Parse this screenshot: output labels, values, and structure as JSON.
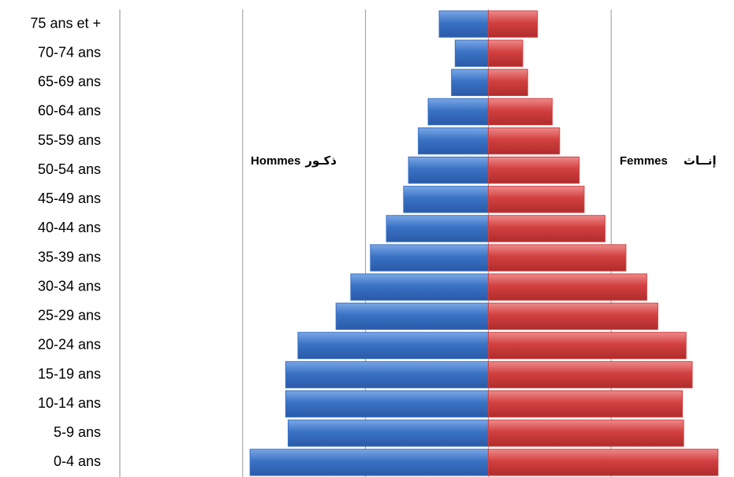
{
  "chart_data": {
    "type": "pyramid",
    "categories": [
      "0-4 ans",
      "5-9 ans",
      "10-14 ans",
      "15-19 ans",
      "20-24 ans",
      "25-29 ans",
      "30-34 ans",
      "35-39 ans",
      "40-44 ans",
      "45-49 ans",
      "50-54 ans",
      "55-59 ans",
      "60-64 ans",
      "65-69 ans",
      "70-74 ans",
      "75 ans et +"
    ],
    "series": [
      {
        "name": "Hommes",
        "name_ar": "ذكـور",
        "color": "#3a72c4",
        "side": "left",
        "values": [
          1.94,
          1.63,
          1.65,
          1.65,
          1.55,
          1.24,
          1.12,
          0.96,
          0.83,
          0.69,
          0.65,
          0.57,
          0.49,
          0.3,
          0.27,
          0.4
        ]
      },
      {
        "name": "Femmes",
        "name_ar": "إنــاث",
        "color": "#d24040",
        "side": "right",
        "values": [
          1.87,
          1.59,
          1.58,
          1.66,
          1.61,
          1.38,
          1.29,
          1.12,
          0.95,
          0.78,
          0.74,
          0.58,
          0.52,
          0.32,
          0.28,
          0.4
        ]
      }
    ],
    "xlim": [
      -3,
      2
    ],
    "xticks": [
      -3,
      -2,
      -1,
      0,
      1
    ],
    "grid": true
  }
}
